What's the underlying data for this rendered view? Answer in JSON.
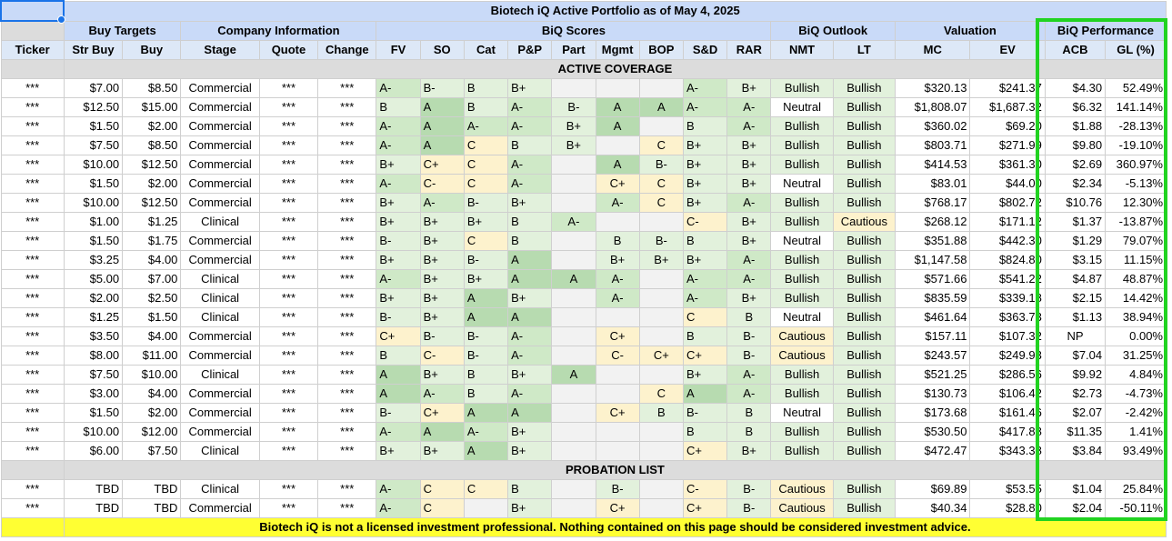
{
  "title": "Biotech iQ Active Portfolio as of May 4, 2025",
  "groups": {
    "buy_targets": "Buy Targets",
    "company_information": "Company Information",
    "biq_scores": "BiQ Scores",
    "biq_outlook": "BiQ Outlook",
    "valuation": "Valuation",
    "biq_performance": "BiQ Performance"
  },
  "columns": [
    "Ticker",
    "Str Buy",
    "Buy",
    "Stage",
    "Quote",
    "Change",
    "FV",
    "SO",
    "Cat",
    "P&P",
    "Part",
    "Mgmt",
    "BOP",
    "S&D",
    "RAR",
    "NMT",
    "LT",
    "MC",
    "EV",
    "ACB",
    "GL (%)"
  ],
  "sections": {
    "active": "ACTIVE COVERAGE",
    "probation": "PROBATION LIST"
  },
  "active_rows": [
    {
      "ticker": "***",
      "str_buy": "$7.00",
      "buy": "$8.50",
      "stage": "Commercial",
      "quote": "***",
      "change": "***",
      "fv": "A-",
      "so": "B-",
      "cat": "B",
      "pp": "B+",
      "part": "",
      "mgmt": "",
      "bop": "",
      "sd": "A-",
      "rar": "B+",
      "nmt": "Bullish",
      "lt": "Bullish",
      "mc": "$320.13",
      "ev": "$241.37",
      "acb": "$4.30",
      "gl": "52.49%"
    },
    {
      "ticker": "***",
      "str_buy": "$12.50",
      "buy": "$15.00",
      "stage": "Commercial",
      "quote": "***",
      "change": "***",
      "fv": "B",
      "so": "A",
      "cat": "B",
      "pp": "A-",
      "part": "B-",
      "mgmt": "A",
      "bop": "A",
      "sd": "A-",
      "rar": "A-",
      "nmt": "Neutral",
      "lt": "Bullish",
      "mc": "$1,808.07",
      "ev": "$1,687.32",
      "acb": "$6.32",
      "gl": "141.14%"
    },
    {
      "ticker": "***",
      "str_buy": "$1.50",
      "buy": "$2.00",
      "stage": "Commercial",
      "quote": "***",
      "change": "***",
      "fv": "A-",
      "so": "A",
      "cat": "A-",
      "pp": "A-",
      "part": "B+",
      "mgmt": "A",
      "bop": "",
      "sd": "B",
      "rar": "A-",
      "nmt": "Bullish",
      "lt": "Bullish",
      "mc": "$360.02",
      "ev": "$69.20",
      "acb": "$1.88",
      "gl": "-28.13%"
    },
    {
      "ticker": "***",
      "str_buy": "$7.50",
      "buy": "$8.50",
      "stage": "Commercial",
      "quote": "***",
      "change": "***",
      "fv": "A-",
      "so": "A",
      "cat": "C",
      "pp": "B",
      "part": "B+",
      "mgmt": "",
      "bop": "C",
      "sd": "B+",
      "rar": "B+",
      "nmt": "Bullish",
      "lt": "Bullish",
      "mc": "$803.71",
      "ev": "$271.99",
      "acb": "$9.80",
      "gl": "-19.10%"
    },
    {
      "ticker": "***",
      "str_buy": "$10.00",
      "buy": "$12.50",
      "stage": "Commercial",
      "quote": "***",
      "change": "***",
      "fv": "B+",
      "so": "C+",
      "cat": "C",
      "pp": "A-",
      "part": "",
      "mgmt": "A",
      "bop": "B-",
      "sd": "B+",
      "rar": "B+",
      "nmt": "Bullish",
      "lt": "Bullish",
      "mc": "$414.53",
      "ev": "$361.30",
      "acb": "$2.69",
      "gl": "360.97%"
    },
    {
      "ticker": "***",
      "str_buy": "$1.50",
      "buy": "$2.00",
      "stage": "Commercial",
      "quote": "***",
      "change": "***",
      "fv": "A-",
      "so": "C-",
      "cat": "C",
      "pp": "A-",
      "part": "",
      "mgmt": "C+",
      "bop": "C",
      "sd": "B+",
      "rar": "B+",
      "nmt": "Neutral",
      "lt": "Bullish",
      "mc": "$83.01",
      "ev": "$44.00",
      "acb": "$2.34",
      "gl": "-5.13%"
    },
    {
      "ticker": "***",
      "str_buy": "$10.00",
      "buy": "$12.50",
      "stage": "Commercial",
      "quote": "***",
      "change": "***",
      "fv": "B+",
      "so": "A-",
      "cat": "B-",
      "pp": "B+",
      "part": "",
      "mgmt": "A-",
      "bop": "C",
      "sd": "B+",
      "rar": "A-",
      "nmt": "Bullish",
      "lt": "Bullish",
      "mc": "$768.17",
      "ev": "$802.72",
      "acb": "$10.76",
      "gl": "12.30%"
    },
    {
      "ticker": "***",
      "str_buy": "$1.00",
      "buy": "$1.25",
      "stage": "Clinical",
      "quote": "***",
      "change": "***",
      "fv": "B+",
      "so": "B+",
      "cat": "B+",
      "pp": "B",
      "part": "A-",
      "mgmt": "",
      "bop": "",
      "sd": "C-",
      "rar": "B+",
      "nmt": "Bullish",
      "lt": "Cautious",
      "mc": "$268.12",
      "ev": "$171.12",
      "acb": "$1.37",
      "gl": "-13.87%"
    },
    {
      "ticker": "***",
      "str_buy": "$1.50",
      "buy": "$1.75",
      "stage": "Commercial",
      "quote": "***",
      "change": "***",
      "fv": "B-",
      "so": "B+",
      "cat": "C",
      "pp": "B",
      "part": "",
      "mgmt": "B",
      "bop": "B-",
      "sd": "B",
      "rar": "B+",
      "nmt": "Neutral",
      "lt": "Bullish",
      "mc": "$351.88",
      "ev": "$442.30",
      "acb": "$1.29",
      "gl": "79.07%"
    },
    {
      "ticker": "***",
      "str_buy": "$3.25",
      "buy": "$4.00",
      "stage": "Commercial",
      "quote": "***",
      "change": "***",
      "fv": "B+",
      "so": "B+",
      "cat": "B-",
      "pp": "A",
      "part": "",
      "mgmt": "B+",
      "bop": "B+",
      "sd": "B+",
      "rar": "A-",
      "nmt": "Bullish",
      "lt": "Bullish",
      "mc": "$1,147.58",
      "ev": "$824.80",
      "acb": "$3.15",
      "gl": "11.15%"
    },
    {
      "ticker": "***",
      "str_buy": "$5.00",
      "buy": "$7.00",
      "stage": "Clinical",
      "quote": "***",
      "change": "***",
      "fv": "A-",
      "so": "B+",
      "cat": "B+",
      "pp": "A",
      "part": "A",
      "mgmt": "A-",
      "bop": "",
      "sd": "A-",
      "rar": "A-",
      "nmt": "Bullish",
      "lt": "Bullish",
      "mc": "$571.66",
      "ev": "$541.22",
      "acb": "$4.87",
      "gl": "48.87%"
    },
    {
      "ticker": "***",
      "str_buy": "$2.00",
      "buy": "$2.50",
      "stage": "Clinical",
      "quote": "***",
      "change": "***",
      "fv": "B+",
      "so": "B+",
      "cat": "A",
      "pp": "B+",
      "part": "",
      "mgmt": "A-",
      "bop": "",
      "sd": "A-",
      "rar": "B+",
      "nmt": "Bullish",
      "lt": "Bullish",
      "mc": "$835.59",
      "ev": "$339.18",
      "acb": "$2.15",
      "gl": "14.42%"
    },
    {
      "ticker": "***",
      "str_buy": "$1.25",
      "buy": "$1.50",
      "stage": "Clinical",
      "quote": "***",
      "change": "***",
      "fv": "B-",
      "so": "B+",
      "cat": "A",
      "pp": "A",
      "part": "",
      "mgmt": "",
      "bop": "",
      "sd": "C",
      "rar": "B",
      "nmt": "Neutral",
      "lt": "Bullish",
      "mc": "$461.64",
      "ev": "$363.73",
      "acb": "$1.13",
      "gl": "38.94%"
    },
    {
      "ticker": "***",
      "str_buy": "$3.50",
      "buy": "$4.00",
      "stage": "Commercial",
      "quote": "***",
      "change": "***",
      "fv": "C+",
      "so": "B-",
      "cat": "B-",
      "pp": "A-",
      "part": "",
      "mgmt": "C+",
      "bop": "",
      "sd": "B",
      "rar": "B-",
      "nmt": "Cautious",
      "lt": "Bullish",
      "mc": "$157.11",
      "ev": "$107.32",
      "acb": "NP",
      "gl": "0.00%"
    },
    {
      "ticker": "***",
      "str_buy": "$8.00",
      "buy": "$11.00",
      "stage": "Commercial",
      "quote": "***",
      "change": "***",
      "fv": "B",
      "so": "C-",
      "cat": "B-",
      "pp": "A-",
      "part": "",
      "mgmt": "C-",
      "bop": "C+",
      "sd": "C+",
      "rar": "B-",
      "nmt": "Cautious",
      "lt": "Bullish",
      "mc": "$243.57",
      "ev": "$249.93",
      "acb": "$7.04",
      "gl": "31.25%"
    },
    {
      "ticker": "***",
      "str_buy": "$7.50",
      "buy": "$10.00",
      "stage": "Clinical",
      "quote": "***",
      "change": "***",
      "fv": "A",
      "so": "B+",
      "cat": "B",
      "pp": "B+",
      "part": "A",
      "mgmt": "",
      "bop": "",
      "sd": "B+",
      "rar": "A-",
      "nmt": "Bullish",
      "lt": "Bullish",
      "mc": "$521.25",
      "ev": "$286.56",
      "acb": "$9.92",
      "gl": "4.84%"
    },
    {
      "ticker": "***",
      "str_buy": "$3.00",
      "buy": "$4.00",
      "stage": "Commercial",
      "quote": "***",
      "change": "***",
      "fv": "A",
      "so": "A-",
      "cat": "B",
      "pp": "A-",
      "part": "",
      "mgmt": "",
      "bop": "C",
      "sd": "A",
      "rar": "A-",
      "nmt": "Bullish",
      "lt": "Bullish",
      "mc": "$130.73",
      "ev": "$106.42",
      "acb": "$2.73",
      "gl": "-4.73%"
    },
    {
      "ticker": "***",
      "str_buy": "$1.50",
      "buy": "$2.00",
      "stage": "Commercial",
      "quote": "***",
      "change": "***",
      "fv": "B-",
      "so": "C+",
      "cat": "A",
      "pp": "A",
      "part": "",
      "mgmt": "C+",
      "bop": "B",
      "sd": "B-",
      "rar": "B",
      "nmt": "Neutral",
      "lt": "Bullish",
      "mc": "$173.68",
      "ev": "$161.46",
      "acb": "$2.07",
      "gl": "-2.42%"
    },
    {
      "ticker": "***",
      "str_buy": "$10.00",
      "buy": "$12.00",
      "stage": "Commercial",
      "quote": "***",
      "change": "***",
      "fv": "A-",
      "so": "A",
      "cat": "A-",
      "pp": "B+",
      "part": "",
      "mgmt": "",
      "bop": "",
      "sd": "B",
      "rar": "B",
      "nmt": "Bullish",
      "lt": "Bullish",
      "mc": "$530.50",
      "ev": "$417.88",
      "acb": "$11.35",
      "gl": "1.41%"
    },
    {
      "ticker": "***",
      "str_buy": "$6.00",
      "buy": "$7.50",
      "stage": "Clinical",
      "quote": "***",
      "change": "***",
      "fv": "B+",
      "so": "B+",
      "cat": "A",
      "pp": "B+",
      "part": "",
      "mgmt": "",
      "bop": "",
      "sd": "C+",
      "rar": "B+",
      "nmt": "Bullish",
      "lt": "Bullish",
      "mc": "$472.47",
      "ev": "$343.38",
      "acb": "$3.84",
      "gl": "93.49%"
    }
  ],
  "probation_rows": [
    {
      "ticker": "***",
      "str_buy": "TBD",
      "buy": "TBD",
      "stage": "Clinical",
      "quote": "***",
      "change": "***",
      "fv": "A-",
      "so": "C",
      "cat": "C",
      "pp": "B",
      "part": "",
      "mgmt": "B-",
      "bop": "",
      "sd": "C-",
      "rar": "B-",
      "nmt": "Cautious",
      "lt": "Bullish",
      "mc": "$69.89",
      "ev": "$53.55",
      "acb": "$1.04",
      "gl": "25.84%"
    },
    {
      "ticker": "***",
      "str_buy": "TBD",
      "buy": "TBD",
      "stage": "Commercial",
      "quote": "***",
      "change": "***",
      "fv": "A-",
      "so": "C",
      "cat": "",
      "pp": "B+",
      "part": "",
      "mgmt": "C+",
      "bop": "",
      "sd": "C+",
      "rar": "B-",
      "nmt": "Cautious",
      "lt": "Bullish",
      "mc": "$40.34",
      "ev": "$28.80",
      "acb": "$2.04",
      "gl": "-50.11%"
    }
  ],
  "disclaimer": "Biotech iQ is not a licensed investment professional. Nothing contained on this page should be considered investment advice.",
  "colors": {
    "header_blue": "#c9daf8",
    "grade_green_dark": "#b7dbb0",
    "grade_green_mid": "#cfe9c7",
    "grade_green_light": "#e2f1dc",
    "grade_yellow": "#fdf2cd",
    "positive": "#34a853",
    "negative": "#e0282b",
    "footer_yellow": "#ffff33",
    "highlight_border": "#21d321"
  }
}
